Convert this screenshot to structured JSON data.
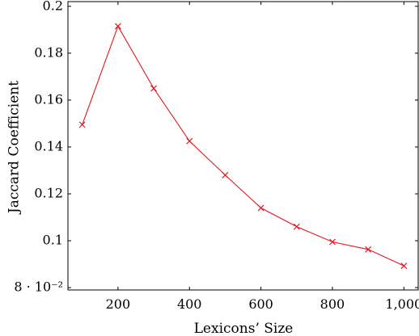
{
  "chart_data": {
    "type": "line",
    "title": "",
    "xlabel": "Lexicons’ Size",
    "ylabel": "Jaccard Coefficient",
    "xlim": [
      60,
      1040
    ],
    "ylim": [
      0.079,
      0.202
    ],
    "x_ticks": [
      {
        "value": 200,
        "label": "200"
      },
      {
        "value": 400,
        "label": "400"
      },
      {
        "value": 600,
        "label": "600"
      },
      {
        "value": 800,
        "label": "800"
      },
      {
        "value": 1000,
        "label": "1,000"
      }
    ],
    "y_ticks": [
      {
        "value": 0.08,
        "label": "8 · 10⁻²"
      },
      {
        "value": 0.1,
        "label": "0.1"
      },
      {
        "value": 0.12,
        "label": "0.12"
      },
      {
        "value": 0.14,
        "label": "0.14"
      },
      {
        "value": 0.16,
        "label": "0.16"
      },
      {
        "value": 0.18,
        "label": "0.18"
      },
      {
        "value": 0.2,
        "label": "0.2"
      }
    ],
    "grid": false,
    "legend": "none",
    "series": [
      {
        "color": "#e8141c",
        "marker": "x",
        "x": [
          100,
          200,
          300,
          400,
          500,
          600,
          700,
          800,
          900,
          1000
        ],
        "y": [
          0.1495,
          0.1915,
          0.165,
          0.1425,
          0.128,
          0.114,
          0.106,
          0.0995,
          0.0963,
          0.0893
        ]
      }
    ]
  }
}
